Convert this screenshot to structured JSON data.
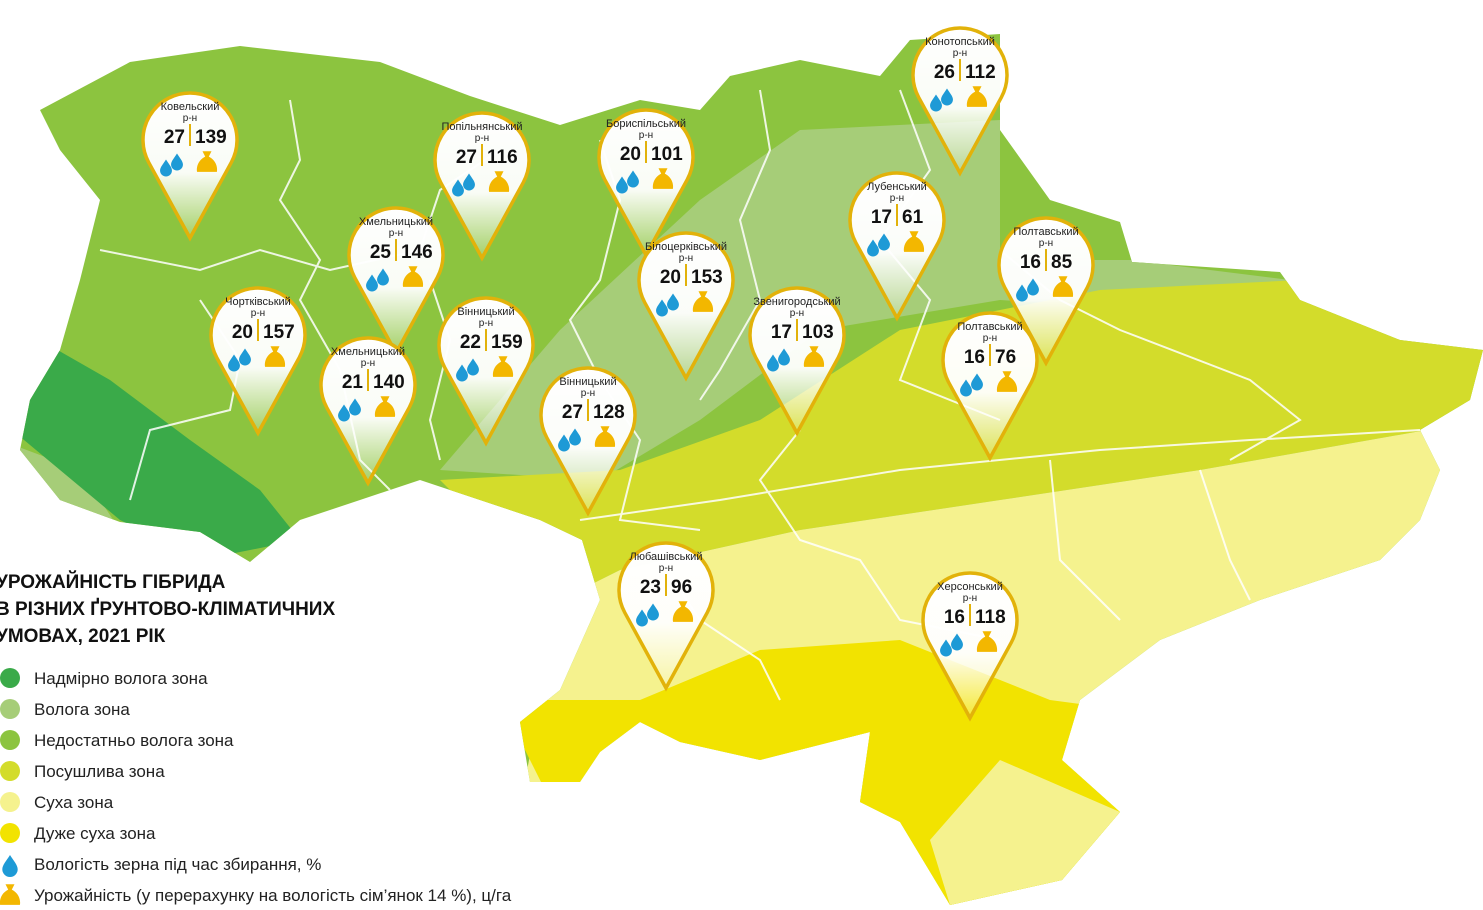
{
  "title": [
    "УРОЖАЙНІСТЬ ГІБРИДА",
    "В РІЗНИХ ҐРУНТОВО-КЛІМАТИЧНИХ",
    "УМОВАХ, 2021 РІК"
  ],
  "zones": [
    {
      "label": "Надмірно волога зона",
      "color": "#3aaa49"
    },
    {
      "label": "Волога зона",
      "color": "#a6cd78"
    },
    {
      "label": "Недостатньо волога зона",
      "color": "#8cc43f"
    },
    {
      "label": "Посушлива зона",
      "color": "#d3dc2b"
    },
    {
      "label": "Суха зона",
      "color": "#f5f28e"
    },
    {
      "label": "Дуже суха зона",
      "color": "#f2e300"
    }
  ],
  "icons": {
    "moisture": "Вологість зерна під час збирання, %",
    "yield": "Урожайність (у перерахунку на вологість сім’янок 14 %), ц/га"
  },
  "pins": [
    {
      "district": "Ковельский",
      "unit": "р-н",
      "moisture": 27,
      "yield": 139
    },
    {
      "district": "Попільнянський",
      "unit": "р-н",
      "moisture": 27,
      "yield": 116
    },
    {
      "district": "Бориспільський",
      "unit": "р-н",
      "moisture": 20,
      "yield": 101
    },
    {
      "district": "Конотопський",
      "unit": "р-н",
      "moisture": 26,
      "yield": 112
    },
    {
      "district": "Хмельницький",
      "unit": "р-н",
      "moisture": 25,
      "yield": 146
    },
    {
      "district": "Лубенський",
      "unit": "р-н",
      "moisture": 17,
      "yield": 61
    },
    {
      "district": "Білоцерківський",
      "unit": "р-н",
      "moisture": 20,
      "yield": 153
    },
    {
      "district": "Полтавський",
      "unit": "р-н",
      "moisture": 16,
      "yield": 85
    },
    {
      "district": "Чортківський",
      "unit": "р-н",
      "moisture": 20,
      "yield": 157
    },
    {
      "district": "Вінницький",
      "unit": "р-н",
      "moisture": 22,
      "yield": 159
    },
    {
      "district": "Звенигородський",
      "unit": "р-н",
      "moisture": 17,
      "yield": 103
    },
    {
      "district": "Полтавський",
      "unit": "р-н",
      "moisture": 16,
      "yield": 76
    },
    {
      "district": "Хмельницький",
      "unit": "р-н",
      "moisture": 21,
      "yield": 140
    },
    {
      "district": "Вінницький",
      "unit": "р-н",
      "moisture": 27,
      "yield": 128
    },
    {
      "district": "Любашівський",
      "unit": "р-н",
      "moisture": 23,
      "yield": 96
    },
    {
      "district": "Херсонський",
      "unit": "р-н",
      "moisture": 16,
      "yield": 118
    }
  ]
}
